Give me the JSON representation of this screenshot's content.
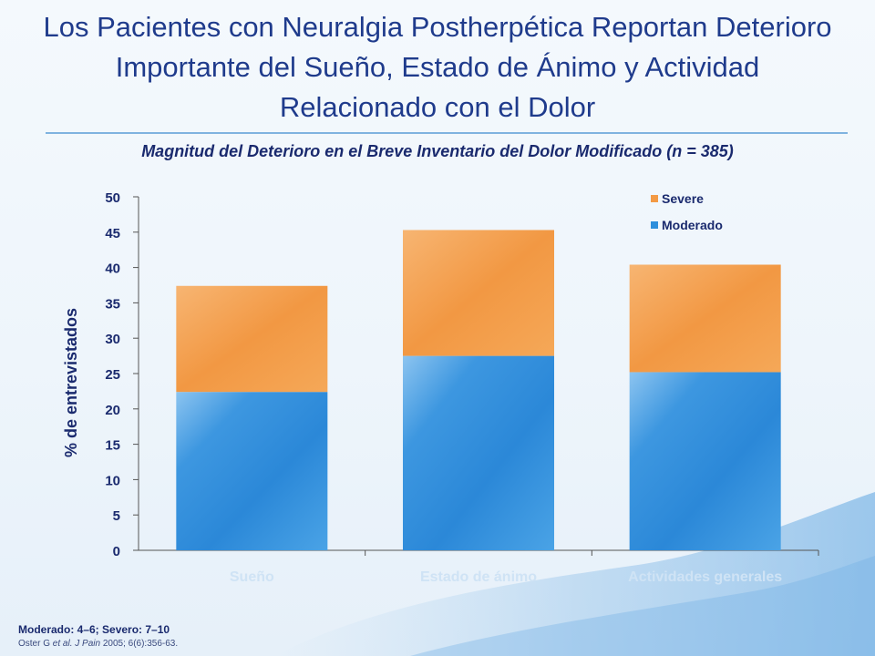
{
  "slide": {
    "title": "Los Pacientes con Neuralgia Postherpética Reportan Deterioro Importante del Sueño, Estado de Ánimo y Actividad Relacionado con el Dolor",
    "title_lines": [
      "Los Pacientes con Neuralgia Postherpética Reportan Deterioro",
      "Importante del Sueño, Estado de Ánimo y Actividad",
      "Relacionado con el Dolor"
    ],
    "footnote_definition": "Moderado: 4–6; Severo: 7–10",
    "citation_authors": "Oster G ",
    "citation_etal": "et al.",
    "citation_journal": "J Pain",
    "citation_details": "2005; 6(6):356-63."
  },
  "chart_data": {
    "type": "bar",
    "stacked": true,
    "title": "Magnitud del Deterioro en el Breve Inventario del Dolor Modificado (n = 385)",
    "xlabel": "",
    "ylabel": "% de entrevistados",
    "categories": [
      "Sueño",
      "Estado de ánimo",
      "Actividades generales"
    ],
    "series": [
      {
        "name": "Moderado",
        "values": [
          22.4,
          27.5,
          25.2
        ],
        "color": "#2e8fdc"
      },
      {
        "name": "Severe",
        "values": [
          15.0,
          17.8,
          15.2
        ],
        "color": "#f39a45"
      }
    ],
    "ylim": [
      0,
      50
    ],
    "yticks": [
      0,
      5,
      10,
      15,
      20,
      25,
      30,
      35,
      40,
      45,
      50
    ],
    "grid": false,
    "legend_position": "top-right",
    "legend_order": [
      "Severe",
      "Moderado"
    ]
  }
}
